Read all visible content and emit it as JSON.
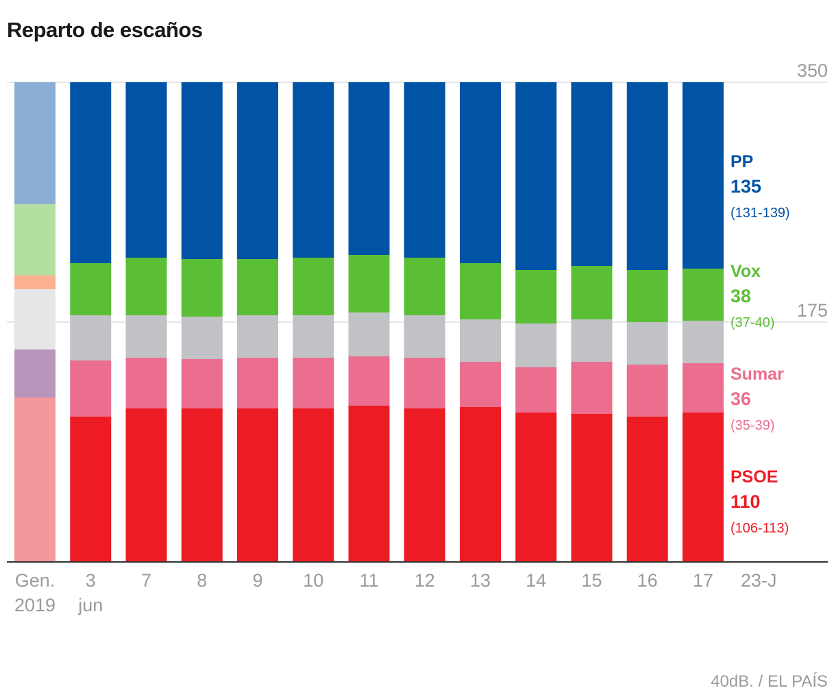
{
  "title": "Reparto de escaños",
  "source": "40dB. / EL PAÍS",
  "colors": {
    "grid": "#dddddd",
    "axis": "#333333",
    "muted_text": "#9b9b9b"
  },
  "chart_data": {
    "type": "bar",
    "stacked": true,
    "ylim": [
      0,
      350
    ],
    "yticks": [
      175,
      350
    ],
    "grid": true,
    "categories": [
      {
        "line1": "Gen.",
        "line2": "2019"
      },
      {
        "line1": "3",
        "line2": "jun"
      },
      {
        "line1": "7",
        "line2": ""
      },
      {
        "line1": "8",
        "line2": ""
      },
      {
        "line1": "9",
        "line2": ""
      },
      {
        "line1": "10",
        "line2": ""
      },
      {
        "line1": "11",
        "line2": ""
      },
      {
        "line1": "12",
        "line2": ""
      },
      {
        "line1": "13",
        "line2": ""
      },
      {
        "line1": "14",
        "line2": ""
      },
      {
        "line1": "15",
        "line2": ""
      },
      {
        "line1": "16",
        "line2": ""
      },
      {
        "line1": "17",
        "line2": ""
      }
    ],
    "final_category": "23-J",
    "series": [
      {
        "name": "PSOE",
        "color": "#ed1c24",
        "color_2019": "#f4989b",
        "values": [
          120,
          106,
          112,
          112,
          112,
          112,
          114,
          112,
          113,
          109,
          108,
          106,
          109
        ]
      },
      {
        "name": "Sumar",
        "color": "#ec6e8f",
        "color_2019": "#b896bb",
        "values": [
          35,
          41,
          37,
          36,
          37,
          37,
          36,
          37,
          33,
          33,
          38,
          38,
          36
        ]
      },
      {
        "name": "",
        "color": "#c0c2c5",
        "color_2019": "#e5e6e7",
        "values": [
          44,
          33,
          31,
          31,
          31,
          31,
          32,
          31,
          31,
          32,
          31,
          31,
          31
        ]
      },
      {
        "name": "",
        "color": "#ffffff",
        "color_2019": "#fbb18f",
        "values": [
          10,
          0,
          0,
          0,
          0,
          0,
          0,
          0,
          0,
          0,
          0,
          0,
          0
        ]
      },
      {
        "name": "Vox",
        "color": "#5bbf36",
        "color_2019": "#b3e0a1",
        "values": [
          52,
          38,
          42,
          42,
          41,
          42,
          42,
          42,
          41,
          39,
          39,
          38,
          38
        ]
      },
      {
        "name": "PP",
        "color": "#0053a5",
        "color_2019": "#8aaed4",
        "values": [
          89,
          132,
          128,
          129,
          129,
          128,
          126,
          128,
          132,
          137,
          134,
          137,
          136
        ]
      }
    ],
    "labels": [
      {
        "name": "PP",
        "value": "135",
        "range": "(131-139)",
        "color": "#0053a5",
        "anchor": 288
      },
      {
        "name": "Vox",
        "value": "38",
        "range": "(37-40)",
        "color": "#5bbf36",
        "anchor": 208
      },
      {
        "name": "Sumar",
        "value": "36",
        "range": "(35-39)",
        "color": "#ec6e8f",
        "anchor": 133
      },
      {
        "name": "PSOE",
        "value": "110",
        "range": "(106-113)",
        "color": "#ed1c24",
        "anchor": 58
      }
    ]
  }
}
